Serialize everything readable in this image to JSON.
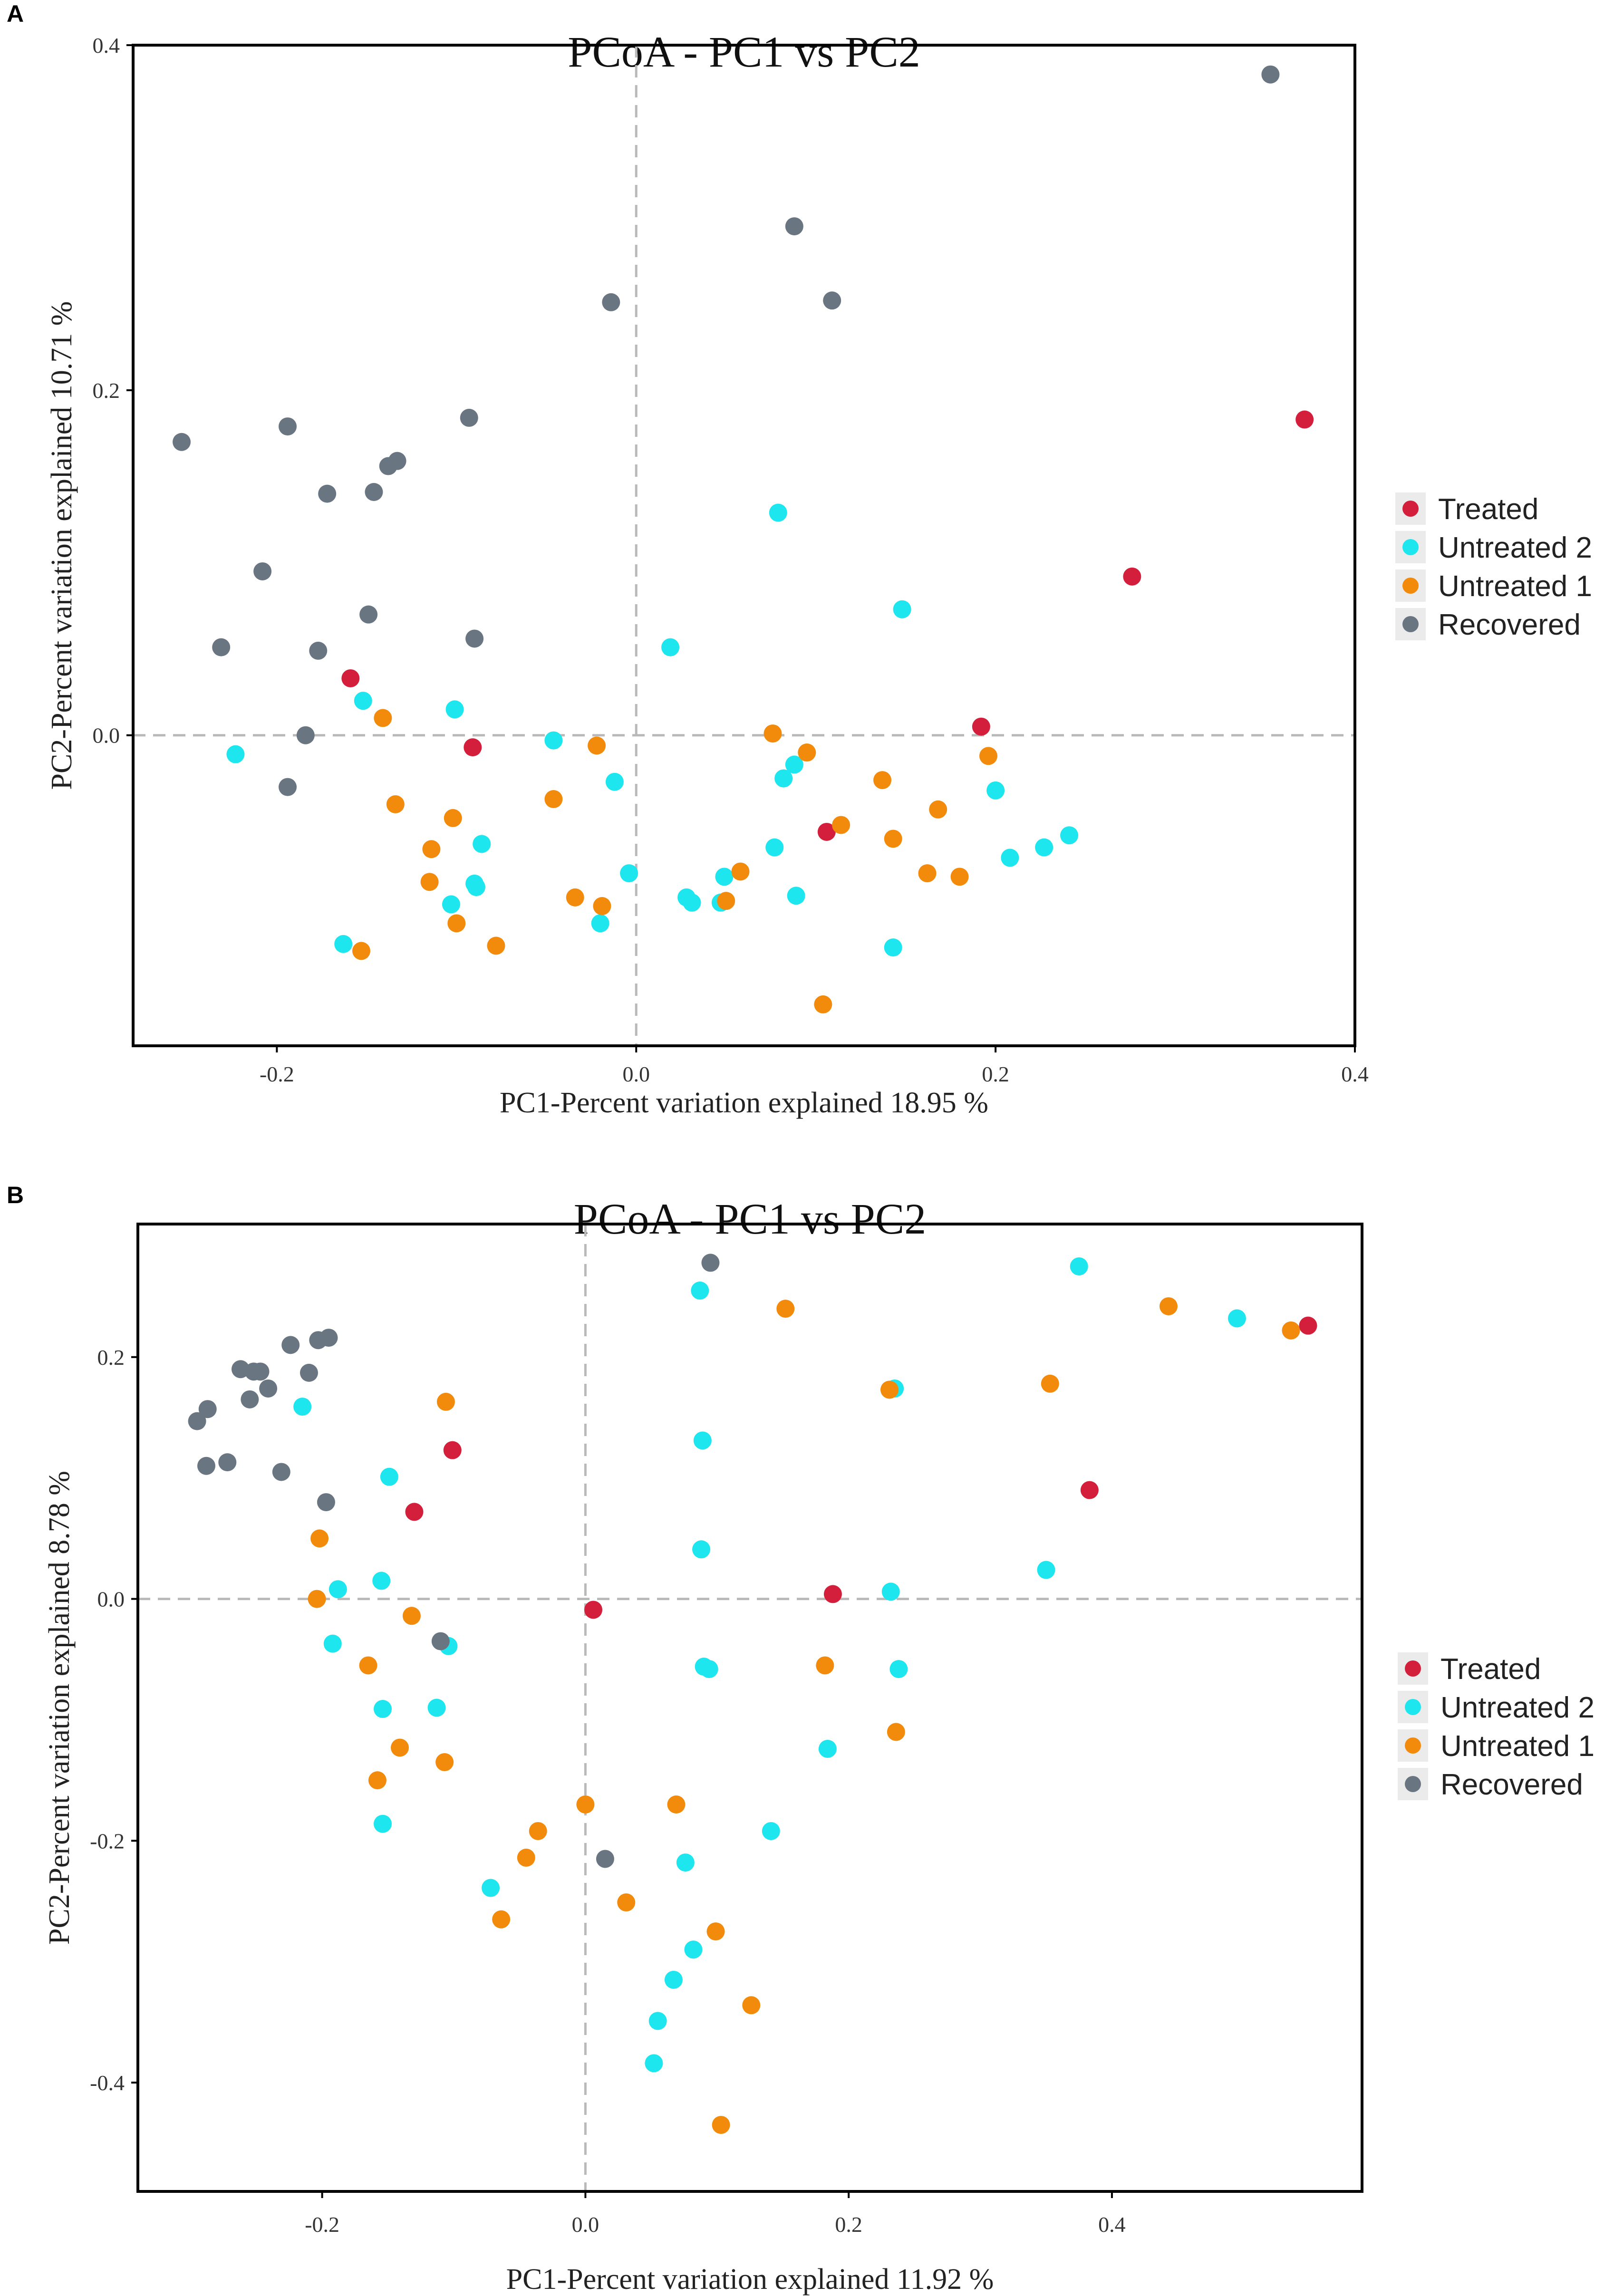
{
  "panels": [
    "A",
    "B"
  ],
  "legend": [
    {
      "name": "Treated",
      "color": "#d41f3c"
    },
    {
      "name": "Untreated 2",
      "color": "#1ee6ee"
    },
    {
      "name": "Untreated 1",
      "color": "#f28a0c"
    },
    {
      "name": "Recovered",
      "color": "#6a7582"
    }
  ],
  "chart_data": [
    {
      "type": "scatter",
      "title": "PCoA - PC1 vs PC2",
      "xlabel": "PC1-Percent variation explained 18.95 %",
      "ylabel": "PC2-Percent variation explained 10.71 %",
      "xlim": [
        -0.28,
        0.4
      ],
      "ylim": [
        -0.18,
        0.4
      ],
      "xticks": [
        {
          "v": -0.2,
          "label": "-0.2"
        },
        {
          "v": 0,
          "label": "0.0"
        },
        {
          "v": 0.2,
          "label": "0.2"
        },
        {
          "v": 0.4,
          "label": "0.4"
        }
      ],
      "yticks": [
        {
          "v": 0,
          "label": "0.0"
        },
        {
          "v": 0.2,
          "label": "0.2"
        },
        {
          "v": 0.4,
          "label": "0.4"
        }
      ],
      "series": [
        {
          "name": "Treated",
          "points": [
            [
              -0.159,
              0.033
            ],
            [
              -0.091,
              -0.007
            ],
            [
              0.192,
              0.005
            ],
            [
              0.106,
              -0.056
            ],
            [
              0.276,
              0.092
            ],
            [
              0.372,
              0.183
            ]
          ]
        },
        {
          "name": "Untreated 2",
          "points": [
            [
              -0.223,
              -0.011
            ],
            [
              -0.152,
              0.02
            ],
            [
              -0.101,
              0.015
            ],
            [
              -0.046,
              -0.003
            ],
            [
              0.019,
              0.051
            ],
            [
              0.079,
              0.129
            ],
            [
              0.148,
              0.073
            ],
            [
              -0.163,
              -0.121
            ],
            [
              -0.103,
              -0.098
            ],
            [
              -0.089,
              -0.088
            ],
            [
              -0.086,
              -0.063
            ],
            [
              -0.09,
              -0.086
            ],
            [
              -0.012,
              -0.027
            ],
            [
              -0.004,
              -0.08
            ],
            [
              -0.02,
              -0.109
            ],
            [
              0.028,
              -0.094
            ],
            [
              0.031,
              -0.097
            ],
            [
              0.047,
              -0.097
            ],
            [
              0.049,
              -0.082
            ],
            [
              0.077,
              -0.065
            ],
            [
              0.082,
              -0.025
            ],
            [
              0.088,
              -0.017
            ],
            [
              0.089,
              -0.093
            ],
            [
              0.143,
              -0.123
            ],
            [
              0.2,
              -0.032
            ],
            [
              0.208,
              -0.071
            ],
            [
              0.227,
              -0.065
            ],
            [
              0.241,
              -0.058
            ]
          ]
        },
        {
          "name": "Untreated 1",
          "points": [
            [
              -0.141,
              0.01
            ],
            [
              -0.134,
              -0.04
            ],
            [
              -0.102,
              -0.048
            ],
            [
              -0.114,
              -0.066
            ],
            [
              -0.115,
              -0.085
            ],
            [
              -0.1,
              -0.109
            ],
            [
              -0.153,
              -0.125
            ],
            [
              -0.078,
              -0.122
            ],
            [
              -0.046,
              -0.037
            ],
            [
              -0.022,
              -0.006
            ],
            [
              -0.034,
              -0.094
            ],
            [
              -0.019,
              -0.099
            ],
            [
              0.05,
              -0.096
            ],
            [
              0.058,
              -0.079
            ],
            [
              0.076,
              0.001
            ],
            [
              0.095,
              -0.01
            ],
            [
              0.114,
              -0.052
            ],
            [
              0.137,
              -0.026
            ],
            [
              0.143,
              -0.06
            ],
            [
              0.168,
              -0.043
            ],
            [
              0.162,
              -0.08
            ],
            [
              0.18,
              -0.082
            ],
            [
              0.196,
              -0.012
            ],
            [
              0.104,
              -0.156
            ]
          ]
        },
        {
          "name": "Recovered",
          "points": [
            [
              -0.253,
              0.17
            ],
            [
              -0.194,
              0.179
            ],
            [
              -0.138,
              0.156
            ],
            [
              -0.133,
              0.159
            ],
            [
              -0.093,
              0.184
            ],
            [
              -0.172,
              0.14
            ],
            [
              -0.146,
              0.141
            ],
            [
              -0.208,
              0.095
            ],
            [
              -0.231,
              0.051
            ],
            [
              -0.177,
              0.049
            ],
            [
              -0.149,
              0.07
            ],
            [
              -0.09,
              0.056
            ],
            [
              -0.184,
              0.0
            ],
            [
              -0.194,
              -0.03
            ],
            [
              -0.014,
              0.251
            ],
            [
              0.088,
              0.295
            ],
            [
              0.109,
              0.252
            ],
            [
              0.353,
              0.383
            ]
          ]
        }
      ]
    },
    {
      "type": "scatter",
      "title": "PCoA - PC1 vs PC2",
      "xlabel": "PC1-Percent variation explained 11.92 %",
      "ylabel": "PC2-Percent variation explained 8.78 %",
      "xlim": [
        -0.34,
        0.59
      ],
      "ylim": [
        -0.49,
        0.31
      ],
      "xticks": [
        {
          "v": -0.2,
          "label": "-0.2"
        },
        {
          "v": 0,
          "label": "0.0"
        },
        {
          "v": 0.2,
          "label": "0.2"
        },
        {
          "v": 0.4,
          "label": "0.4"
        }
      ],
      "yticks": [
        {
          "v": -0.4,
          "label": "-0.4"
        },
        {
          "v": -0.2,
          "label": "-0.2"
        },
        {
          "v": 0,
          "label": "0.0"
        },
        {
          "v": 0.2,
          "label": "0.2"
        }
      ],
      "series": [
        {
          "name": "Treated",
          "points": [
            [
              -0.101,
              0.123
            ],
            [
              -0.13,
              0.072
            ],
            [
              0.006,
              -0.009
            ],
            [
              0.188,
              0.004
            ],
            [
              0.383,
              0.09
            ],
            [
              0.549,
              0.226
            ]
          ]
        },
        {
          "name": "Untreated 2",
          "points": [
            [
              -0.215,
              0.159
            ],
            [
              -0.149,
              0.101
            ],
            [
              -0.188,
              0.008
            ],
            [
              -0.155,
              0.015
            ],
            [
              -0.192,
              -0.037
            ],
            [
              -0.104,
              -0.039
            ],
            [
              -0.154,
              -0.091
            ],
            [
              -0.113,
              -0.09
            ],
            [
              -0.154,
              -0.186
            ],
            [
              -0.072,
              -0.239
            ],
            [
              0.087,
              0.255
            ],
            [
              0.089,
              0.131
            ],
            [
              0.088,
              0.041
            ],
            [
              0.09,
              -0.056
            ],
            [
              0.094,
              -0.058
            ],
            [
              0.184,
              -0.124
            ],
            [
              0.141,
              -0.192
            ],
            [
              0.076,
              -0.218
            ],
            [
              0.082,
              -0.29
            ],
            [
              0.067,
              -0.315
            ],
            [
              0.055,
              -0.349
            ],
            [
              0.052,
              -0.384
            ],
            [
              0.232,
              0.006
            ],
            [
              0.238,
              -0.058
            ],
            [
              0.235,
              0.174
            ],
            [
              0.35,
              0.024
            ],
            [
              0.375,
              0.275
            ],
            [
              0.495,
              0.232
            ]
          ]
        },
        {
          "name": "Untreated 1",
          "points": [
            [
              -0.106,
              0.163
            ],
            [
              -0.202,
              0.05
            ],
            [
              -0.204,
              0.0
            ],
            [
              -0.132,
              -0.014
            ],
            [
              -0.165,
              -0.055
            ],
            [
              -0.141,
              -0.123
            ],
            [
              -0.107,
              -0.135
            ],
            [
              -0.158,
              -0.15
            ],
            [
              0.0,
              -0.17
            ],
            [
              -0.036,
              -0.192
            ],
            [
              -0.045,
              -0.214
            ],
            [
              -0.064,
              -0.265
            ],
            [
              0.031,
              -0.251
            ],
            [
              0.069,
              -0.17
            ],
            [
              0.099,
              -0.275
            ],
            [
              0.126,
              -0.336
            ],
            [
              0.103,
              -0.435
            ],
            [
              0.152,
              0.24
            ],
            [
              0.182,
              -0.055
            ],
            [
              0.236,
              -0.11
            ],
            [
              0.231,
              0.173
            ],
            [
              0.353,
              0.178
            ],
            [
              0.443,
              0.242
            ],
            [
              0.536,
              0.222
            ]
          ]
        },
        {
          "name": "Recovered",
          "points": [
            [
              -0.295,
              0.147
            ],
            [
              -0.287,
              0.157
            ],
            [
              -0.288,
              0.11
            ],
            [
              -0.272,
              0.113
            ],
            [
              -0.262,
              0.19
            ],
            [
              -0.252,
              0.188
            ],
            [
              -0.247,
              0.188
            ],
            [
              -0.255,
              0.165
            ],
            [
              -0.241,
              0.174
            ],
            [
              -0.231,
              0.105
            ],
            [
              -0.224,
              0.21
            ],
            [
              -0.21,
              0.187
            ],
            [
              -0.203,
              0.214
            ],
            [
              -0.195,
              0.216
            ],
            [
              -0.197,
              0.08
            ],
            [
              -0.11,
              -0.035
            ],
            [
              0.015,
              -0.215
            ],
            [
              0.095,
              0.278
            ]
          ]
        }
      ]
    }
  ]
}
